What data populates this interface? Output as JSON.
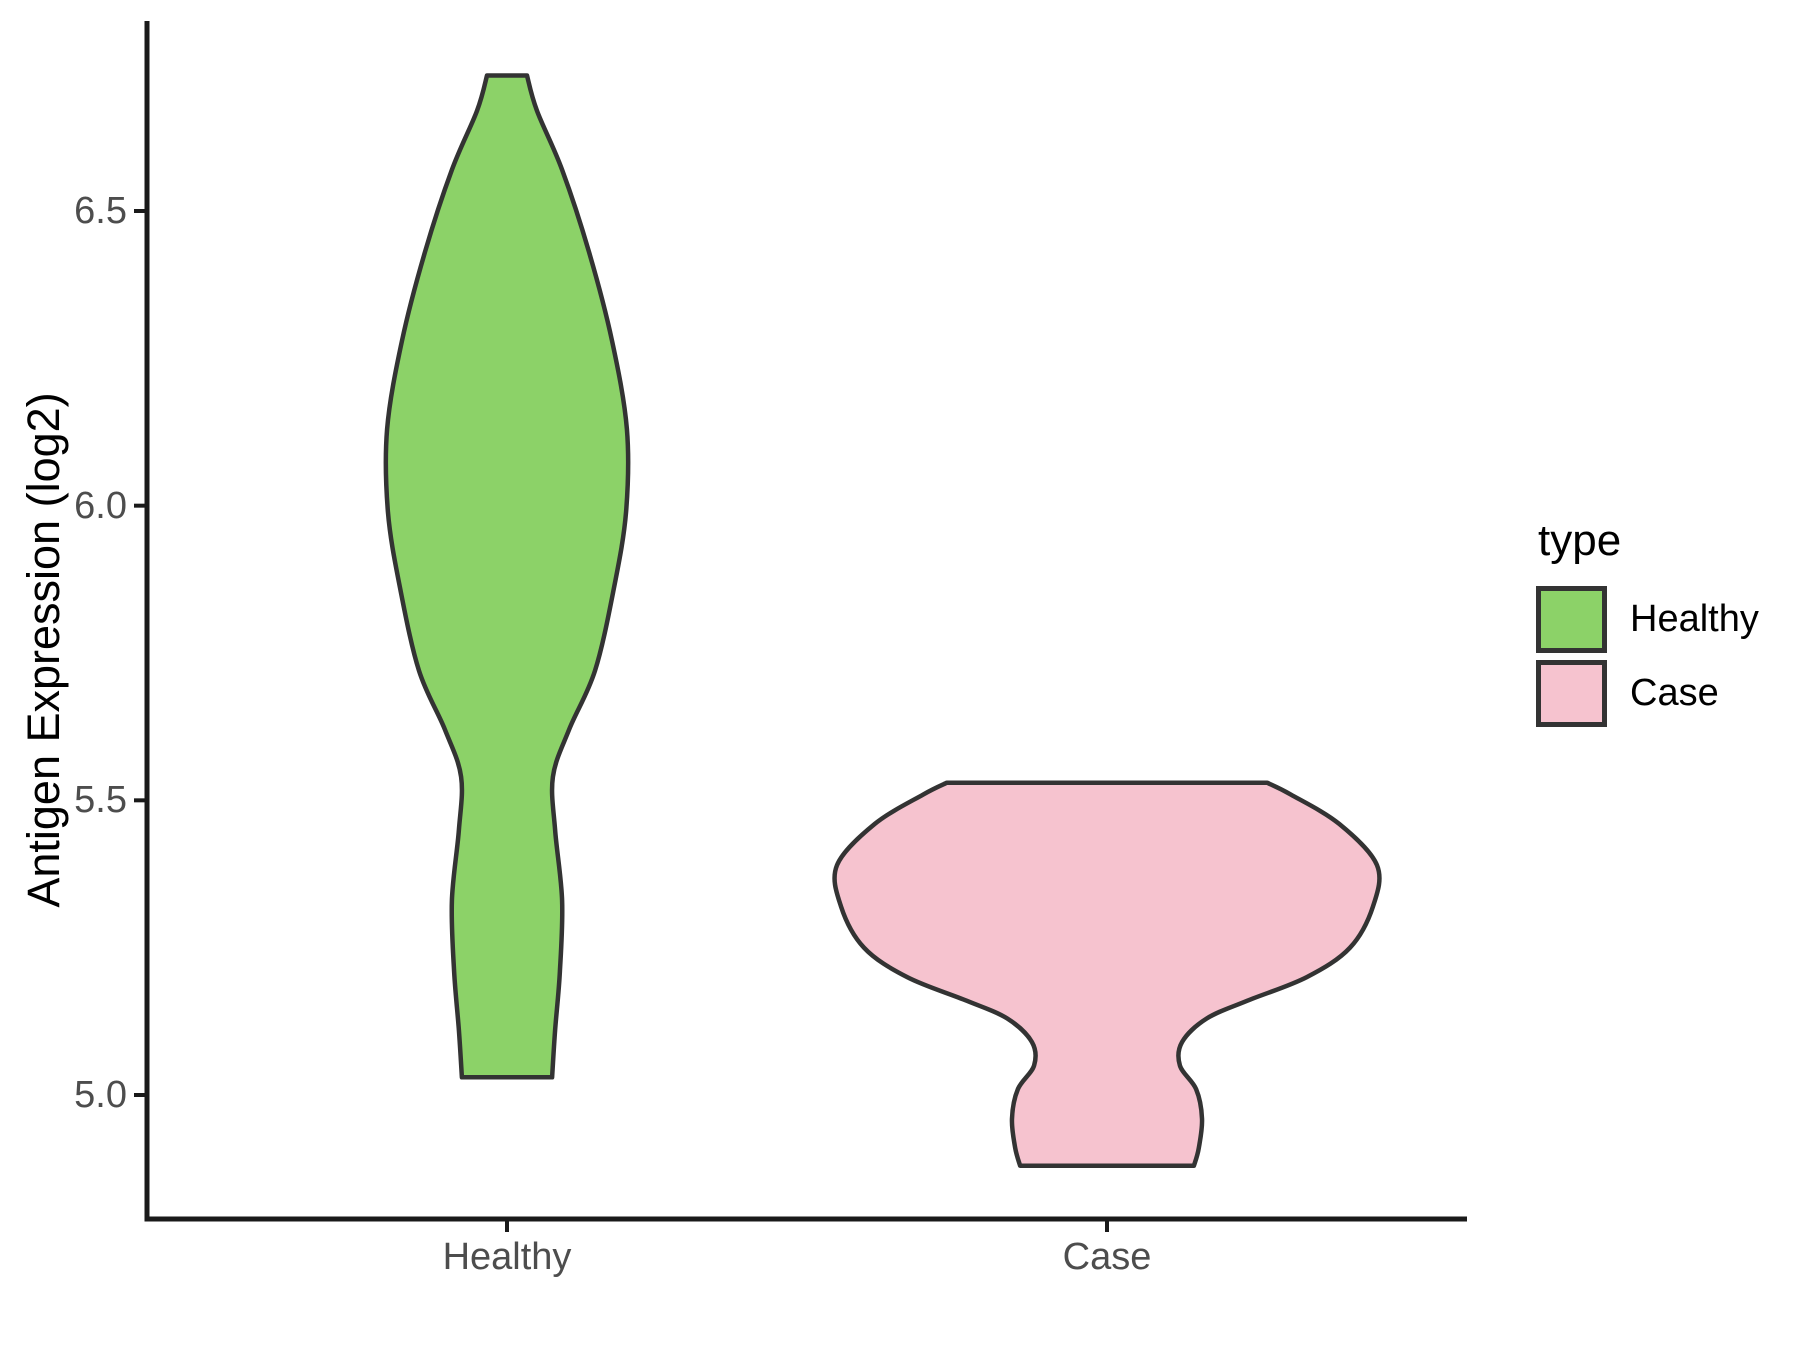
{
  "figure": {
    "background": "#ffffff",
    "axis_line_color": "#1a1a1a",
    "tick_color": "#1a1a1a",
    "tick_label_color": "#4d4d4d",
    "text_color": "#000000"
  },
  "chart_data": {
    "type": "violin",
    "title": "",
    "xlabel": "",
    "ylabel": "Antigen Expression (log2)",
    "categories": [
      "Healthy",
      "Case"
    ],
    "y_axis": {
      "ticks": [
        "5.0",
        "5.5",
        "6.0",
        "6.5"
      ],
      "tick_values": [
        5.0,
        5.5,
        6.0,
        6.5
      ],
      "ylim_shown": [
        4.79,
        6.82
      ],
      "grid": "off"
    },
    "legend": {
      "title": "type",
      "position": "right",
      "entries": [
        {
          "label": "Healthy",
          "fill": "#8CD268"
        },
        {
          "label": "Case",
          "fill": "#F6C3CF"
        }
      ]
    },
    "series": [
      {
        "name": "Healthy",
        "fill": "#8CD268",
        "outline": "#333333",
        "value_range": [
          5.03,
          6.73
        ],
        "profile_v_hw": [
          [
            6.73,
            0.074
          ],
          [
            6.67,
            0.111
          ],
          [
            6.57,
            0.204
          ],
          [
            6.43,
            0.304
          ],
          [
            6.28,
            0.389
          ],
          [
            6.13,
            0.444
          ],
          [
            5.99,
            0.441
          ],
          [
            5.86,
            0.396
          ],
          [
            5.72,
            0.326
          ],
          [
            5.62,
            0.23
          ],
          [
            5.54,
            0.17
          ],
          [
            5.45,
            0.178
          ],
          [
            5.33,
            0.204
          ],
          [
            5.21,
            0.196
          ],
          [
            5.11,
            0.178
          ],
          [
            5.03,
            0.167
          ]
        ]
      },
      {
        "name": "Case",
        "fill": "#F6C3CF",
        "outline": "#333333",
        "value_range": [
          4.88,
          5.53
        ],
        "profile_v_hw": [
          [
            5.53,
            0.593
          ],
          [
            5.51,
            0.68
          ],
          [
            5.46,
            0.86
          ],
          [
            5.39,
            1.0
          ],
          [
            5.32,
            0.985
          ],
          [
            5.25,
            0.9
          ],
          [
            5.2,
            0.74
          ],
          [
            5.16,
            0.52
          ],
          [
            5.13,
            0.37
          ],
          [
            5.09,
            0.278
          ],
          [
            5.05,
            0.27
          ],
          [
            5.01,
            0.33
          ],
          [
            4.96,
            0.352
          ],
          [
            4.91,
            0.34
          ],
          [
            4.88,
            0.322
          ]
        ]
      }
    ]
  }
}
